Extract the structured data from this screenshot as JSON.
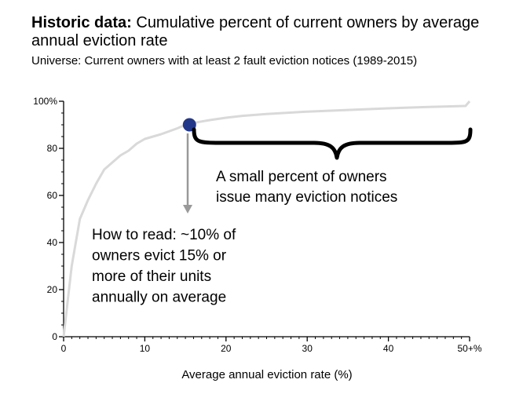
{
  "title_bold": "Historic data:",
  "title_rest": " Cumulative percent of current owners by average annual eviction rate",
  "subtitle": "Universe: Current owners with at least 2 fault eviction notices (1989-2015)",
  "chart_data": {
    "type": "line",
    "xlabel": "Average annual eviction rate (%)",
    "ylabel": "",
    "xlim": [
      0,
      50
    ],
    "ylim": [
      0,
      100
    ],
    "x_ticks": [
      {
        "value": 0,
        "label": "0"
      },
      {
        "value": 10,
        "label": "10"
      },
      {
        "value": 20,
        "label": "20"
      },
      {
        "value": 30,
        "label": "30"
      },
      {
        "value": 40,
        "label": "40"
      },
      {
        "value": 50,
        "label": "50+%"
      }
    ],
    "y_ticks": [
      {
        "value": 0,
        "label": "0"
      },
      {
        "value": 20,
        "label": "20"
      },
      {
        "value": 40,
        "label": "40"
      },
      {
        "value": 60,
        "label": "60"
      },
      {
        "value": 80,
        "label": "80"
      },
      {
        "value": 100,
        "label": "100%"
      }
    ],
    "series": [
      {
        "x": [
          0,
          1,
          2,
          3,
          4,
          5,
          6,
          7,
          8,
          9,
          10,
          12,
          14,
          15,
          16,
          18,
          20,
          22,
          25,
          30,
          35,
          40,
          45,
          49.5,
          50
        ],
        "y": [
          0,
          30,
          50,
          58,
          65,
          71,
          74,
          77,
          79,
          82,
          84,
          86,
          88.5,
          90,
          90.8,
          92,
          93,
          93.8,
          94.6,
          95.6,
          96.3,
          97,
          97.6,
          98,
          100
        ],
        "color": "#d9d9d9"
      }
    ],
    "highlight_point": {
      "x": 15.5,
      "y": 90,
      "color": "#23378a"
    },
    "annotations": [
      {
        "lines": [
          "A small percent of owners",
          "issue many eviction notices"
        ]
      },
      {
        "lines": [
          "How to read: ~10% of",
          "owners evict 15% or",
          "more of their units",
          "annually on average"
        ]
      }
    ]
  }
}
